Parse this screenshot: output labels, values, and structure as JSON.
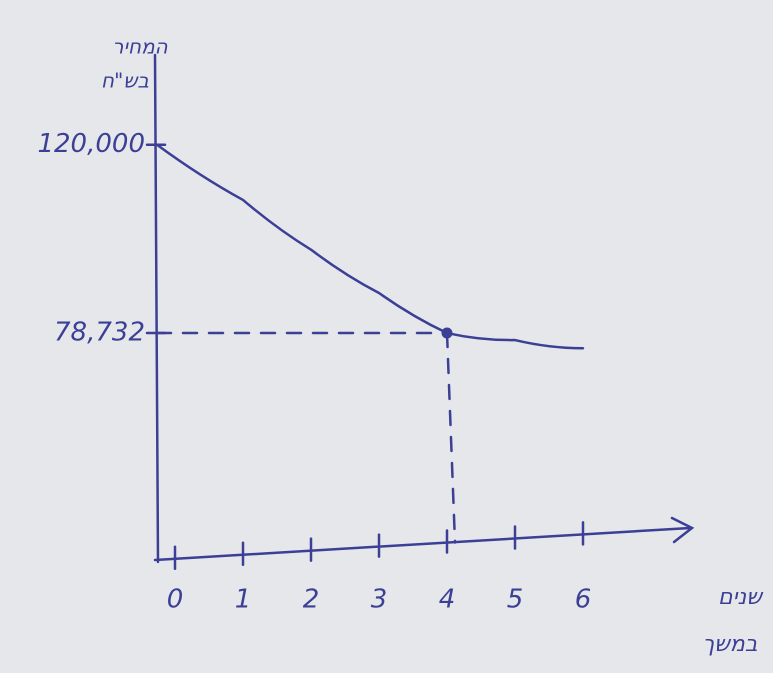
{
  "chart_data": {
    "type": "line",
    "y_label": [
      "המחיר",
      "בש\"ח"
    ],
    "x_label": [
      "שנים",
      "במשך"
    ],
    "x": [
      0,
      1,
      2,
      3,
      4,
      5,
      6
    ],
    "series": [
      {
        "color": "#3b3f96",
        "values": [
          120000,
          107900,
          97000,
          87500,
          78732,
          77200,
          75400
        ]
      }
    ],
    "highlight_index": 4,
    "xlim": [
      0,
      6
    ],
    "xticks": [
      0,
      1,
      2,
      3,
      4,
      5,
      6
    ],
    "ylim": [
      29000,
      139000
    ],
    "yticks": [
      {
        "value": 78732,
        "label": "78,732"
      },
      {
        "value": 120000,
        "label": "120,000"
      }
    ]
  }
}
